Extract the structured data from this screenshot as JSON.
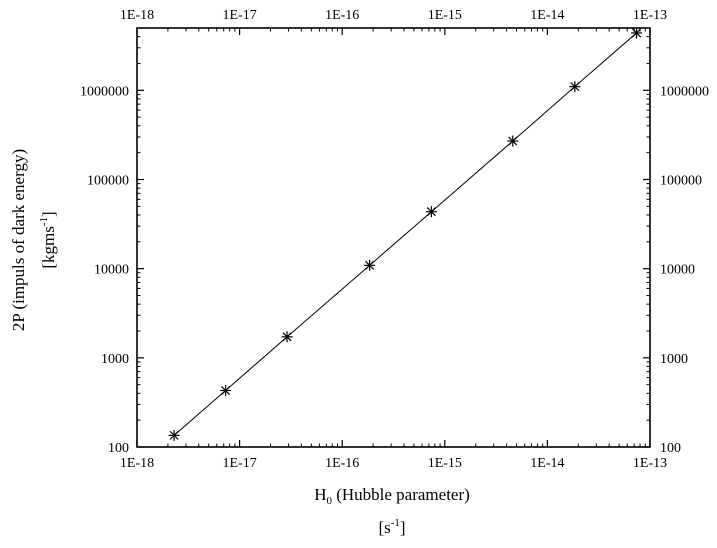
{
  "chart_data": {
    "type": "scatter",
    "title": "",
    "xlabel": "H",
    "xlabel_sub": "0",
    "xlabel_rest": " (Hubble parameter)",
    "xunit_main": "[s",
    "xunit_sup": "-1",
    "xunit_end": "]",
    "ylabel": "2P (impuls of dark energy)",
    "yunit_main": "[kgms",
    "yunit_sup": "-1",
    "yunit_end": "]",
    "x_scale": "log",
    "y_scale": "log",
    "xlim": [
      1e-18,
      1e-13
    ],
    "ylim": [
      100,
      5000000
    ],
    "grid": false,
    "x_ticks": [
      1e-18,
      1e-17,
      1e-16,
      1e-15,
      1e-14,
      1e-13
    ],
    "x_tick_labels": [
      "1E-18",
      "1E-17",
      "1E-16",
      "1E-15",
      "1E-14",
      "1E-13"
    ],
    "y_ticks": [
      100,
      1000,
      10000,
      100000,
      1000000
    ],
    "y_tick_labels": [
      "100",
      "1000",
      "10000",
      "100000",
      "1000000"
    ],
    "marker": "asterisk",
    "fit_line": true,
    "series": [
      {
        "x": [
          2.3e-18,
          7.3e-18,
          2.9e-17,
          1.85e-16,
          7.4e-16,
          4.6e-15,
          1.85e-14,
          7.4e-14
        ],
        "y": [
          135,
          430,
          1720,
          10900,
          43500,
          270000,
          1100000,
          4400000
        ]
      }
    ]
  }
}
